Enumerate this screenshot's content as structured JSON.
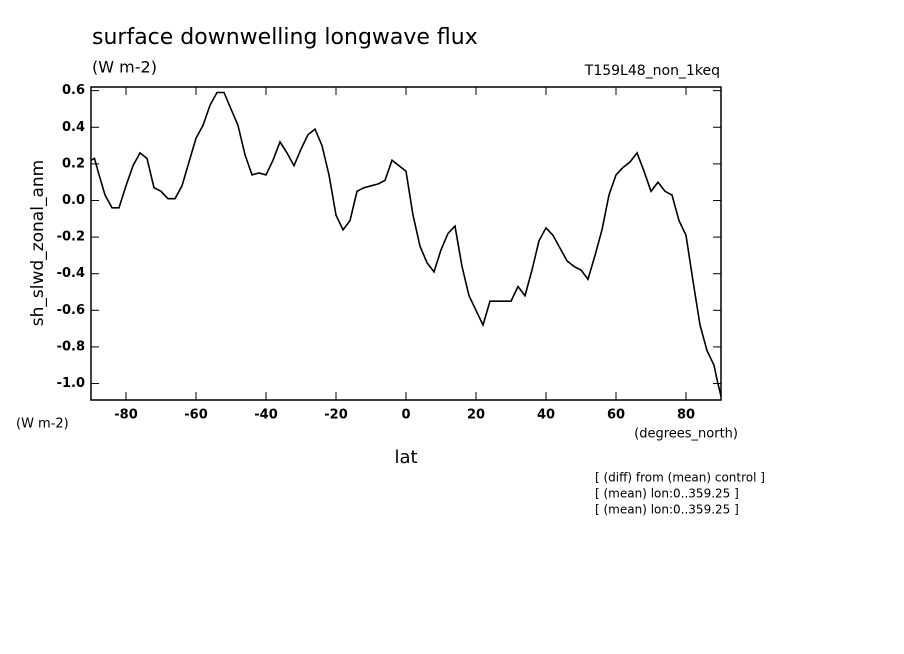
{
  "chart_data": {
    "type": "line",
    "title": "surface downwelling longwave flux",
    "units": "(W m-2)",
    "run_label": "T159L48_non_1keq",
    "y_label": "sh_slwd_zonal_anm",
    "y_units": "(W m-2)",
    "x_units": "(degrees_north)",
    "x_label": "lat",
    "notes": [
      "[ (diff) from (mean) control ]",
      "[ (mean) lon:0..359.25 ]",
      "[ (mean) lon:0..359.25 ]"
    ],
    "x": [
      -90,
      -89,
      -88,
      -86,
      -84,
      -82,
      -80,
      -78,
      -76,
      -74,
      -72,
      -70,
      -68,
      -66,
      -64,
      -62,
      -60,
      -58,
      -56,
      -54,
      -52,
      -50,
      -48,
      -46,
      -44,
      -42,
      -40,
      -38,
      -36,
      -34,
      -32,
      -30,
      -28,
      -26,
      -24,
      -22,
      -20,
      -18,
      -16,
      -14,
      -12,
      -10,
      -8,
      -6,
      -4,
      -2,
      0,
      2,
      4,
      6,
      8,
      10,
      12,
      14,
      16,
      18,
      20,
      22,
      24,
      26,
      28,
      30,
      32,
      34,
      36,
      38,
      40,
      42,
      44,
      46,
      48,
      50,
      52,
      54,
      56,
      58,
      60,
      62,
      64,
      66,
      68,
      70,
      72,
      74,
      76,
      78,
      80,
      82,
      84,
      86,
      88,
      89,
      90
    ],
    "series": [
      {
        "name": "sh_slwd_zonal_anm",
        "color": "#000000",
        "values": [
          0.22,
          0.23,
          0.16,
          0.03,
          -0.04,
          -0.04,
          0.08,
          0.19,
          0.26,
          0.23,
          0.07,
          0.05,
          0.01,
          0.01,
          0.08,
          0.21,
          0.34,
          0.41,
          0.52,
          0.59,
          0.59,
          0.5,
          0.41,
          0.25,
          0.14,
          0.15,
          0.14,
          0.22,
          0.32,
          0.26,
          0.19,
          0.28,
          0.36,
          0.39,
          0.3,
          0.14,
          -0.08,
          -0.16,
          -0.11,
          0.05,
          0.07,
          0.08,
          0.09,
          0.11,
          0.22,
          0.19,
          0.16,
          -0.08,
          -0.25,
          -0.34,
          -0.39,
          -0.27,
          -0.18,
          -0.14,
          -0.36,
          -0.52,
          -0.6,
          -0.68,
          -0.55,
          -0.55,
          -0.55,
          -0.55,
          -0.47,
          -0.52,
          -0.38,
          -0.22,
          -0.15,
          -0.19,
          -0.26,
          -0.33,
          -0.36,
          -0.38,
          -0.43,
          -0.3,
          -0.16,
          0.03,
          0.14,
          0.18,
          0.21,
          0.26,
          0.16,
          0.05,
          0.1,
          0.05,
          0.03,
          -0.11,
          -0.19,
          -0.44,
          -0.68,
          -0.82,
          -0.9,
          -0.99,
          -1.07
        ]
      }
    ],
    "xlim": [
      -90,
      90
    ],
    "ylim": [
      -1.09,
      0.62
    ],
    "xticks": [
      -80,
      -60,
      -40,
      -20,
      0,
      20,
      40,
      60,
      80
    ],
    "yticks": [
      0.6,
      0.4,
      0.2,
      {
        "value": 0,
        "label": "0.0"
      },
      -0.2,
      -0.4,
      -0.6,
      -0.8,
      {
        "value": -1,
        "label": "-1.0"
      }
    ],
    "grid": false
  }
}
